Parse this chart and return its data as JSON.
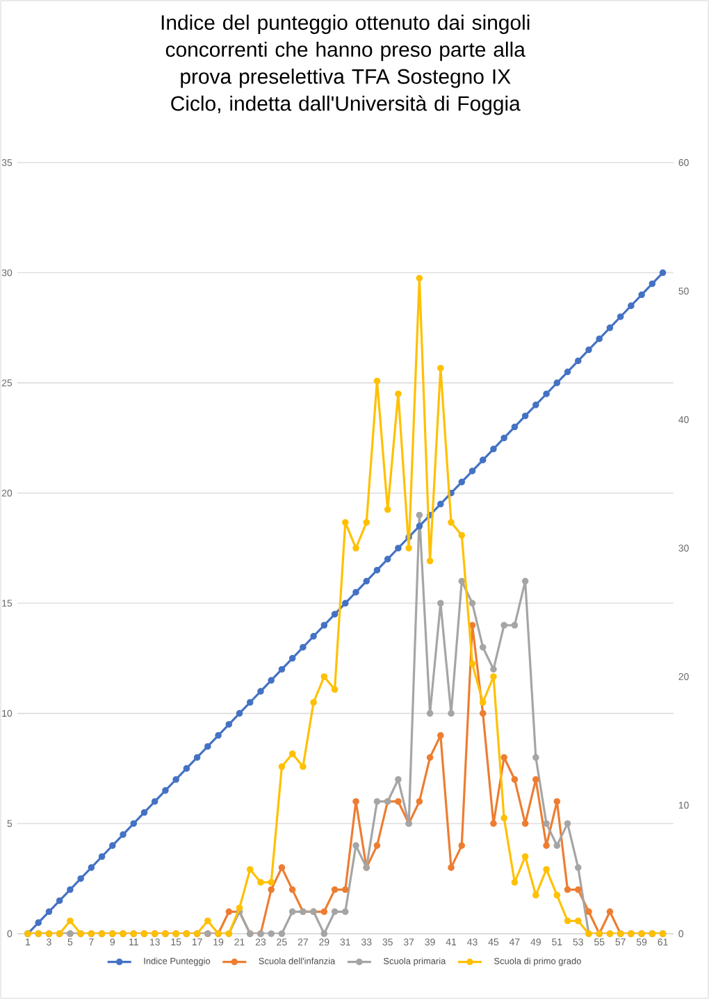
{
  "chart_data": {
    "type": "line",
    "title": "Indice del punteggio ottenuto dai singoli concorrenti che hanno preso parte alla prova preselettiva TFA Sostegno IX Ciclo, indetta dall'Università di Foggia",
    "categories": [
      "1",
      null,
      "3",
      null,
      "5",
      null,
      "7",
      null,
      "9",
      null,
      "11",
      null,
      "13",
      null,
      "15",
      null,
      "17",
      null,
      "19",
      null,
      "21",
      null,
      "23",
      null,
      "25",
      null,
      "27",
      null,
      "29",
      null,
      "31",
      null,
      "33",
      null,
      "35",
      null,
      "37",
      null,
      "39",
      null,
      "41",
      null,
      "43",
      null,
      "45",
      null,
      "47",
      null,
      "49",
      null,
      "51",
      null,
      "53",
      null,
      "55",
      null,
      "57",
      null,
      "59",
      null,
      "61"
    ],
    "series": [
      {
        "name": "Indice Punteggio",
        "color": "#4472c4",
        "axis": "y",
        "values": [
          0,
          0.5,
          1,
          1.5,
          2,
          2.5,
          3,
          3.5,
          4,
          4.5,
          5,
          5.5,
          6,
          6.5,
          7,
          7.5,
          8,
          8.5,
          9,
          9.5,
          10,
          10.5,
          11,
          11.5,
          12,
          12.5,
          13,
          13.5,
          14,
          14.5,
          15,
          15.5,
          16,
          16.5,
          17,
          17.5,
          18,
          18.5,
          19,
          19.5,
          20,
          20.5,
          21,
          21.5,
          22,
          22.5,
          23,
          23.5,
          24,
          24.5,
          25,
          25.5,
          26,
          26.5,
          27,
          27.5,
          28,
          28.5,
          29,
          29.5,
          30
        ]
      },
      {
        "name": "Scuola dell'infanzia",
        "color": "#ed7d31",
        "axis": "y",
        "values": [
          0,
          0,
          0,
          0,
          0,
          0,
          0,
          0,
          0,
          0,
          0,
          0,
          0,
          0,
          0,
          0,
          0,
          0,
          0,
          1,
          1,
          0,
          0,
          2,
          3,
          2,
          1,
          1,
          1,
          2,
          2,
          6,
          3,
          4,
          6,
          6,
          5,
          6,
          8,
          9,
          3,
          4,
          14,
          10,
          5,
          8,
          7,
          5,
          7,
          4,
          6,
          2,
          2,
          1,
          0,
          1,
          0,
          0,
          0,
          0,
          0
        ]
      },
      {
        "name": "Scuola primaria",
        "color": "#a5a5a5",
        "axis": "y",
        "values": [
          0,
          0,
          0,
          0,
          0,
          0,
          0,
          0,
          0,
          0,
          0,
          0,
          0,
          0,
          0,
          0,
          0,
          0,
          0,
          0,
          1,
          0,
          0,
          0,
          0,
          1,
          1,
          1,
          0,
          1,
          1,
          4,
          3,
          6,
          6,
          7,
          5,
          19,
          10,
          15,
          10,
          16,
          15,
          13,
          12,
          14,
          14,
          16,
          8,
          5,
          4,
          5,
          3,
          0,
          0,
          0,
          0,
          0,
          0,
          0,
          0
        ]
      },
      {
        "name": "Scuola di primo grado",
        "color": "#ffc000",
        "axis": "y2",
        "values": [
          0,
          0,
          0,
          0,
          1,
          0,
          0,
          0,
          0,
          0,
          0,
          0,
          0,
          0,
          0,
          0,
          0,
          1,
          0,
          0,
          2,
          5,
          4,
          4,
          13,
          14,
          13,
          18,
          20,
          19,
          32,
          30,
          32,
          43,
          33,
          42,
          30,
          51,
          29,
          44,
          32,
          31,
          21,
          18,
          20,
          9,
          4,
          6,
          3,
          5,
          3,
          1,
          1,
          0,
          0,
          0,
          0,
          0,
          0,
          0,
          0
        ]
      }
    ],
    "ylim": [
      0,
      35
    ],
    "yticks": [
      0,
      5,
      10,
      15,
      20,
      25,
      30,
      35
    ],
    "y2lim": [
      0,
      60
    ],
    "y2ticks": [
      0,
      10,
      20,
      30,
      40,
      50,
      60
    ],
    "grid": "y",
    "legend": "bottom",
    "marker": "circle",
    "line_style": "solid"
  }
}
